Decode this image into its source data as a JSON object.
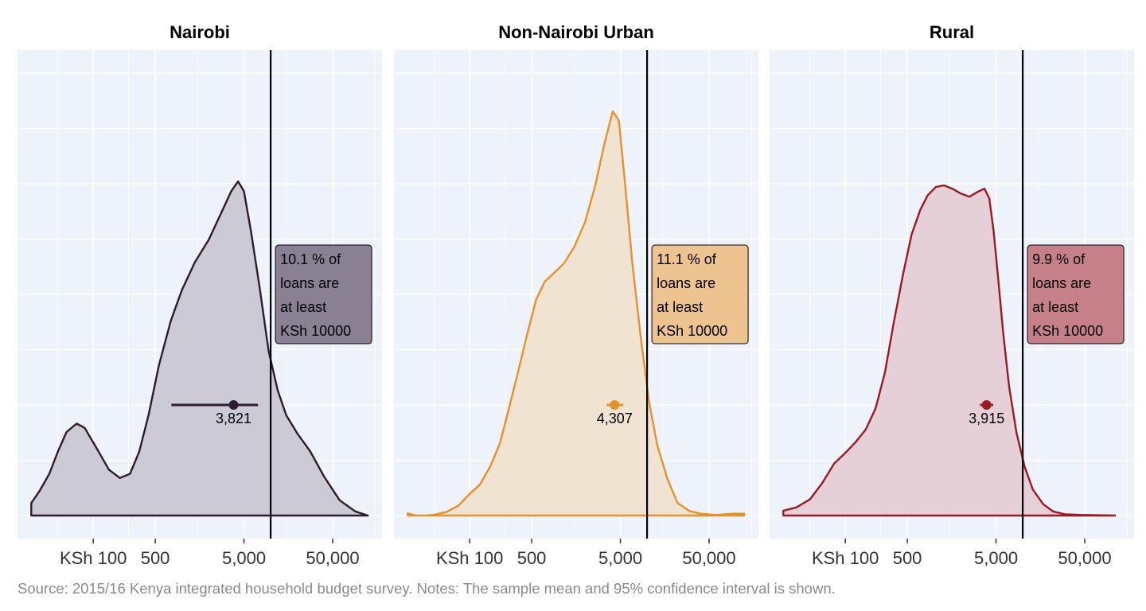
{
  "source_note": "Source: 2015/16 Kenya integrated household budget survey. Notes: The sample mean and 95% confidence interval is shown.",
  "chart_data": {
    "type": "area",
    "x_scale": "log10",
    "x_ticks": [
      {
        "value": 100,
        "label": "KSh 100"
      },
      {
        "value": 500,
        "label": "500"
      },
      {
        "value": 5000,
        "label": "5,000"
      },
      {
        "value": 50000,
        "label": "50,000"
      }
    ],
    "xlim": [
      14,
      180000
    ],
    "threshold": 10000,
    "grid": true,
    "panels": [
      {
        "title": "Nairobi",
        "color": "#2d1b33",
        "fill": "#c8c7d3",
        "label_fill": "#8a8094",
        "annotation": [
          "10.1 % of",
          "loans are",
          "at least",
          "KSh 10000"
        ],
        "mean": 3821,
        "mean_label": "3,821",
        "ci": [
          760,
          7200
        ],
        "x": [
          20,
          20,
          25,
          32,
          40,
          50,
          65,
          80,
          110,
          150,
          200,
          260,
          330,
          420,
          550,
          750,
          1000,
          1400,
          2000,
          2800,
          3600,
          4300,
          5000,
          6000,
          7500,
          9500,
          12000,
          15000,
          20000,
          28000,
          40000,
          60000,
          90000,
          125000,
          125000
        ],
        "density": [
          0.0,
          0.045,
          0.09,
          0.15,
          0.23,
          0.3,
          0.33,
          0.315,
          0.24,
          0.165,
          0.135,
          0.15,
          0.23,
          0.36,
          0.54,
          0.7,
          0.81,
          0.91,
          0.99,
          1.09,
          1.165,
          1.2,
          1.165,
          1.02,
          0.82,
          0.59,
          0.45,
          0.36,
          0.295,
          0.23,
          0.14,
          0.055,
          0.015,
          0.0,
          0.0
        ]
      },
      {
        "title": "Non-Nairobi Urban",
        "color": "#e5922a",
        "fill": "#f0e2d0",
        "label_fill": "#edc38f",
        "annotation": [
          "11.1 % of",
          "loans are",
          "at least",
          "KSh 10000"
        ],
        "mean": 4307,
        "mean_label": "4,307",
        "ci": [
          3500,
          5400
        ],
        "x": [
          20,
          20,
          25,
          32,
          40,
          55,
          75,
          100,
          130,
          170,
          220,
          280,
          350,
          450,
          560,
          700,
          900,
          1150,
          1500,
          2000,
          2600,
          3300,
          4100,
          4800,
          5600,
          6800,
          8500,
          10500,
          13000,
          17000,
          22000,
          30000,
          40000,
          60000,
          90000,
          125000,
          125000
        ],
        "density": [
          0.0,
          0.012,
          0.0,
          0.0,
          0.005,
          0.02,
          0.055,
          0.12,
          0.17,
          0.27,
          0.4,
          0.6,
          0.79,
          1.01,
          1.19,
          1.29,
          1.34,
          1.39,
          1.48,
          1.62,
          1.82,
          2.05,
          2.23,
          2.18,
          1.85,
          1.4,
          0.98,
          0.63,
          0.39,
          0.2,
          0.07,
          0.025,
          0.01,
          0.003,
          0.01,
          0.01,
          0.0
        ]
      },
      {
        "title": "Rural",
        "color": "#9b1b22",
        "fill": "#e3cdd4",
        "label_fill": "#c6808a",
        "annotation": [
          "9.9 % of",
          "loans are",
          "at least",
          "KSh 10000"
        ],
        "mean": 3915,
        "mean_label": "3,915",
        "ci": [
          3300,
          4650
        ],
        "x": [
          20,
          20,
          28,
          40,
          55,
          75,
          100,
          130,
          170,
          220,
          280,
          350,
          450,
          560,
          700,
          850,
          1050,
          1300,
          1600,
          2000,
          2500,
          3100,
          3700,
          4200,
          4700,
          5300,
          6000,
          7000,
          8500,
          10500,
          13000,
          17000,
          22000,
          30000,
          45000,
          70000,
          110000,
          110000
        ],
        "density": [
          0.0,
          0.03,
          0.05,
          0.1,
          0.2,
          0.32,
          0.385,
          0.45,
          0.53,
          0.66,
          0.88,
          1.18,
          1.49,
          1.73,
          1.88,
          1.97,
          2.02,
          2.03,
          2.01,
          1.98,
          1.96,
          1.99,
          2.01,
          1.95,
          1.75,
          1.45,
          1.13,
          0.8,
          0.51,
          0.3,
          0.16,
          0.07,
          0.025,
          0.008,
          0.004,
          0.002,
          0.0,
          0.0
        ]
      }
    ]
  }
}
